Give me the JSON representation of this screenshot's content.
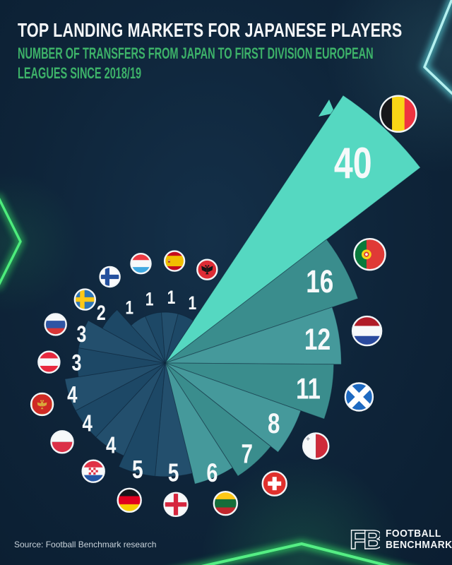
{
  "header": {
    "title": "TOP LANDING MARKETS FOR JAPANESE PLAYERS",
    "subtitle_line1": "NUMBER OF TRANSFERS FROM JAPAN TO FIRST DIVISION EUROPEAN",
    "subtitle_line2": "LEAGUES SINCE 2018/19"
  },
  "footer": {
    "source": "Source: Football Benchmark research",
    "brand_mark": "FB",
    "brand_line1": "FOOTBALL",
    "brand_line2": "BENCHMARK"
  },
  "colors": {
    "background": "#0e2439",
    "title_white": "#f4f6f8",
    "subtitle_green": "#3db269",
    "wedge_highlight": "#55d8c1",
    "wedge_teal_light": "#45999b",
    "wedge_teal_dark": "#3a8d8d",
    "wedge_dark_a": "#1d4866",
    "wedge_dark_b": "#234f6d",
    "label_white": "#f6f9fa",
    "neon_green": "#3fe673",
    "neon_cyan": "#9beaea"
  },
  "chart_data": {
    "type": "rose",
    "title": "TOP LANDING MARKETS FOR JAPANESE PLAYERS",
    "subtitle": "Number of transfers from Japan to first division European leagues since 2018/19",
    "unit": "transfers",
    "layout": "equal-angle wedges (18.95° each), radius proportional to sqrt(value), clockwise from top-right",
    "categories": [
      "Belgium",
      "Portugal",
      "Netherlands",
      "Scotland",
      "Malta",
      "Switzerland",
      "Lithuania",
      "England",
      "Germany",
      "Croatia",
      "Poland",
      "Montenegro",
      "Austria",
      "Russia",
      "Sweden",
      "Finland",
      "Luxembourg",
      "Spain",
      "Albania"
    ],
    "values": [
      40,
      16,
      12,
      11,
      8,
      7,
      6,
      5,
      5,
      4,
      4,
      4,
      3,
      3,
      2,
      1,
      1,
      1,
      1
    ],
    "flag_icons": [
      "flag-belgium-icon",
      "flag-portugal-icon",
      "flag-netherlands-icon",
      "flag-scotland-icon",
      "flag-malta-icon",
      "flag-switzerland-icon",
      "flag-lithuania-icon",
      "flag-england-icon",
      "flag-germany-icon",
      "flag-croatia-icon",
      "flag-poland-icon",
      "flag-montenegro-icon",
      "flag-austria-icon",
      "flag-russia-icon",
      "flag-sweden-icon",
      "flag-finland-icon",
      "flag-luxembourg-icon",
      "flag-spain-icon",
      "flag-albania-icon"
    ],
    "flag_codes": [
      "be",
      "pt",
      "nl",
      "sct",
      "mt",
      "ch",
      "lt",
      "eng",
      "de",
      "hr",
      "pl",
      "me",
      "at",
      "ru",
      "se",
      "fi",
      "lu",
      "es",
      "al"
    ],
    "legend_position": "none",
    "grid": false
  }
}
